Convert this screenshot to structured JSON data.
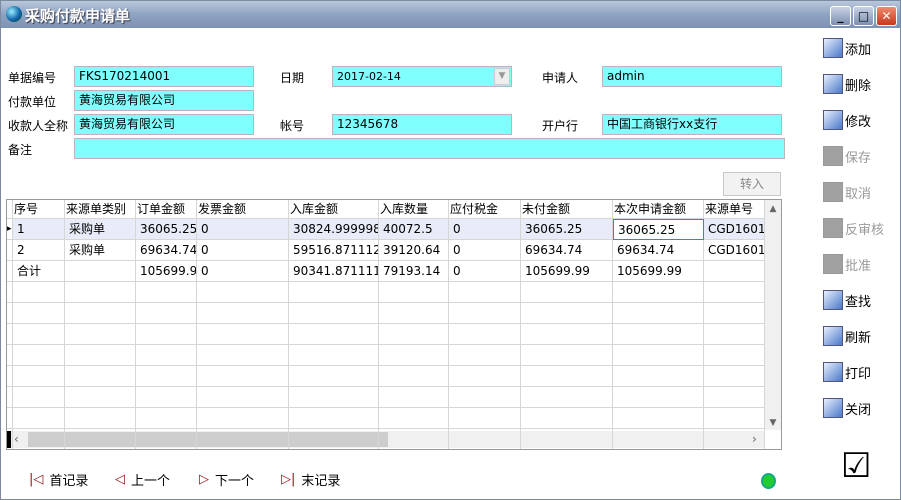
{
  "window": {
    "title": "采购付款申请单",
    "minimize": "_",
    "maximize": "□",
    "close": "✕"
  },
  "form": {
    "doc_no": {
      "label": "单据编号",
      "value": "FKS170214001"
    },
    "date": {
      "label": "日期",
      "value": "2017-02-14"
    },
    "applicant": {
      "label": "申请人",
      "value": "admin"
    },
    "payer": {
      "label": "付款单位",
      "value": "黄海贸易有限公司"
    },
    "payee": {
      "label": "收款人全称",
      "value": "黄海贸易有限公司"
    },
    "account": {
      "label": "帐号",
      "value": "12345678"
    },
    "bank": {
      "label": "开户行",
      "value": "中国工商银行xx支行"
    },
    "remark": {
      "label": "备注",
      "value": ""
    },
    "transfer_button": "转入"
  },
  "grid": {
    "columns": [
      "序号",
      "来源单类别",
      "订单金额",
      "发票金额",
      "入库金额",
      "入库数量",
      "应付税金",
      "未付金额",
      "本次申请金额",
      "来源单号"
    ],
    "rows": [
      [
        "1",
        "采购单",
        "36065.25",
        "0",
        "30824.9999987",
        "40072.5",
        "0",
        "36065.25",
        "36065.25",
        "CGD1601"
      ],
      [
        "2",
        "采购单",
        "69634.74",
        "0",
        "59516.8711123",
        "39120.64",
        "0",
        "69634.74",
        "69634.74",
        "CGD1601"
      ],
      [
        "合计",
        "",
        "105699.99",
        "0",
        "90341.8711111",
        "79193.14",
        "0",
        "105699.99",
        "105699.99",
        ""
      ]
    ]
  },
  "toolbar": [
    {
      "label": "添加",
      "icon": "new-document-icon",
      "enabled": true
    },
    {
      "label": "删除",
      "icon": "delete-hand-icon",
      "enabled": true
    },
    {
      "label": "修改",
      "icon": "edit-icon",
      "enabled": true
    },
    {
      "label": "保存",
      "icon": "save-icon",
      "enabled": false
    },
    {
      "label": "取消",
      "icon": "cancel-icon",
      "enabled": false
    },
    {
      "label": "反审核",
      "icon": "unaudit-icon",
      "enabled": false
    },
    {
      "label": "批准",
      "icon": "approve-icon",
      "enabled": false
    },
    {
      "label": "查找",
      "icon": "search-icon",
      "enabled": true
    },
    {
      "label": "刷新",
      "icon": "refresh-icon",
      "enabled": true
    },
    {
      "label": "打印",
      "icon": "printer-icon",
      "enabled": true
    },
    {
      "label": "关闭",
      "icon": "exit-icon",
      "enabled": true
    }
  ],
  "nav": {
    "first": "首记录",
    "prev": "上一个",
    "next": "下一个",
    "last": "末记录"
  },
  "colors": {
    "input_bg": "#80ffff",
    "title_bar": "#8ea3c2",
    "selected_row": "#e8ecf8"
  }
}
